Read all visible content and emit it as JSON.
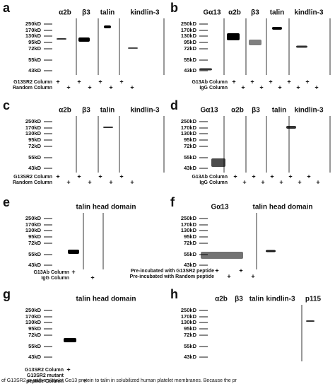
{
  "panels": [
    {
      "letter": "a",
      "headers": [
        "α2b",
        "β3",
        "talin",
        "kindlin-3"
      ],
      "ladder": [
        "250kD",
        "170kD",
        "130kD",
        "95kD",
        "72kD",
        "55kD",
        "43kD"
      ],
      "rows": [
        {
          "label": [
            "G13SR2 Column"
          ],
          "signs": [
            "+",
            "+",
            "+",
            "+"
          ]
        },
        {
          "label": [
            "Random Column"
          ],
          "signs": [
            "+",
            "+",
            "+",
            "+"
          ]
        }
      ]
    },
    {
      "letter": "b",
      "headers": [
        "Gα13",
        "α2b",
        "β3",
        "talin",
        "kindlin-3"
      ],
      "ladder": [
        "250kD",
        "170kD",
        "130kD",
        "95kD",
        "72kD",
        "55kD",
        "43kD"
      ],
      "rows": [
        {
          "label": [
            "G13Ab Column"
          ],
          "signs": [
            "+",
            "+",
            "+",
            "+",
            "+"
          ]
        },
        {
          "label": [
            "IgG Column"
          ],
          "signs": [
            "+",
            "+",
            "+",
            "+",
            "+"
          ]
        }
      ]
    },
    {
      "letter": "c",
      "headers": [
        "α2b",
        "β3",
        "talin",
        "kindlin-3"
      ],
      "ladder": [
        "250kD",
        "170kD",
        "130kD",
        "95kD",
        "72kD",
        "55kD",
        "43kD"
      ],
      "rows": [
        {
          "label": [
            "G13SR2 Column"
          ],
          "signs": [
            "+",
            "+",
            "+",
            "+"
          ]
        },
        {
          "label": [
            "Random Column"
          ],
          "signs": [
            "+",
            "+",
            "+",
            "+"
          ]
        }
      ]
    },
    {
      "letter": "d",
      "headers": [
        "Gα13",
        "α2b",
        "β3",
        "talin",
        "kindlin-3"
      ],
      "ladder": [
        "250kD",
        "170kD",
        "130kD",
        "95kD",
        "72kD",
        "55kD",
        "43kD"
      ],
      "rows": [
        {
          "label": [
            "G13Ab Column"
          ],
          "signs": [
            "+",
            "+",
            "+",
            "+",
            "+"
          ]
        },
        {
          "label": [
            "IgG Column"
          ],
          "signs": [
            "+",
            "+",
            "+",
            "+",
            "+"
          ]
        }
      ]
    },
    {
      "letter": "e",
      "headers": [
        "talin head domain"
      ],
      "ladder": [
        "250kD",
        "170kD",
        "130kD",
        "95kD",
        "72kD",
        "55kD",
        "43kD"
      ],
      "rows": [
        {
          "label": [
            "G13Ab Column"
          ],
          "signs": [
            "+"
          ]
        },
        {
          "label": [
            "IgG  Column"
          ],
          "signs": [
            "+"
          ]
        }
      ]
    },
    {
      "letter": "f",
      "headers": [
        "Gα13",
        "talin head domain"
      ],
      "ladder": [
        "250kD",
        "170kD",
        "130kD",
        "95kD",
        "72kD",
        "55kD",
        "43kD"
      ],
      "rows": [
        {
          "label": [
            "Pre-incubated with G13SR2 peptide"
          ],
          "signs": [
            "+",
            "+"
          ]
        },
        {
          "label": [
            "Pre-incubated with Random peptide"
          ],
          "signs": [
            "+",
            "+"
          ]
        }
      ]
    },
    {
      "letter": "g",
      "headers": [
        "talin head domain"
      ],
      "ladder": [
        "250kD",
        "170kD",
        "130kD",
        "95kD",
        "72kD",
        "55kD",
        "43kD"
      ],
      "rows": [
        {
          "label": [
            "G13SR2 Column"
          ],
          "signs": [
            "+"
          ]
        },
        {
          "label": [
            "G13SR2 mutant",
            "peptide Column"
          ],
          "signs": [
            "+"
          ]
        }
      ]
    },
    {
      "letter": "h",
      "headers": [
        "α2b",
        "β3",
        "talin",
        "kindlin-3",
        "p115"
      ],
      "ladder": [
        "250kD",
        "170kD",
        "130kD",
        "95kD",
        "72kD",
        "55kD",
        "43kD"
      ],
      "rows": []
    }
  ],
  "caption": "of G13SR2 or native platelet Gα13 protein to talin in solubilized human platelet membranes. Because the pr"
}
